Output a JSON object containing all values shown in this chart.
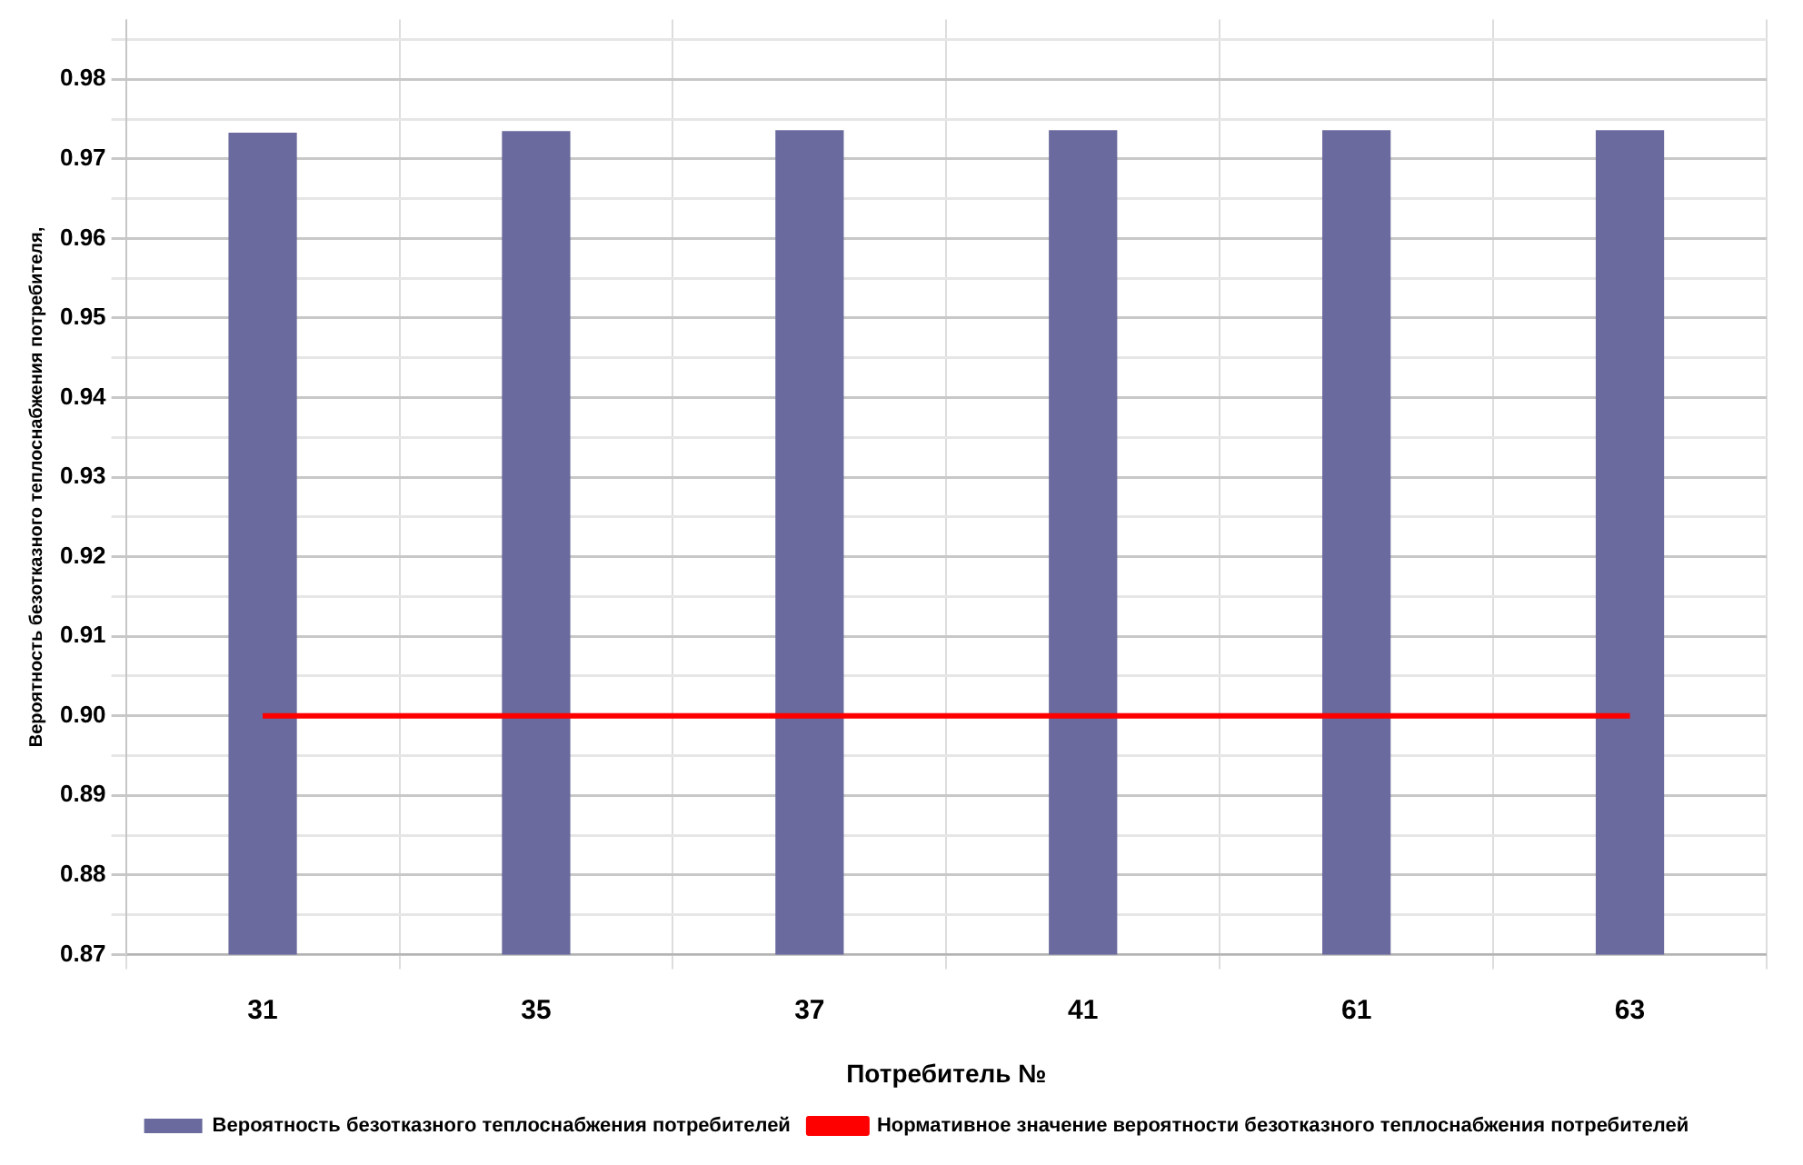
{
  "chart_data": {
    "type": "bar",
    "xlabel": "Потребитель №",
    "ylabel": "Вероятность безотказного теплоснабжения потребителя,",
    "categories": [
      "31",
      "35",
      "37",
      "41",
      "61",
      "63"
    ],
    "series": [
      {
        "name": "Вероятность безотказного теплоснабжения потребителей",
        "color": "#6a6a9e",
        "values": [
          0.9733,
          0.9735,
          0.9736,
          0.9736,
          0.9736,
          0.9736
        ]
      },
      {
        "name": "Нормативное значение вероятности безотказного теплоснабжения потребителей",
        "type": "line",
        "color": "#ff0000",
        "values": [
          0.9,
          0.9,
          0.9,
          0.9,
          0.9,
          0.9
        ]
      }
    ],
    "ylim": [
      0.87,
      0.9875
    ],
    "yticks": [
      {
        "value": 0.87,
        "label": "0.87"
      },
      {
        "value": 0.875,
        "label": null
      },
      {
        "value": 0.88,
        "label": "0.88"
      },
      {
        "value": 0.885,
        "label": null
      },
      {
        "value": 0.89,
        "label": "0.89"
      },
      {
        "value": 0.895,
        "label": null
      },
      {
        "value": 0.9,
        "label": "0.90"
      },
      {
        "value": 0.905,
        "label": null
      },
      {
        "value": 0.91,
        "label": "0.91"
      },
      {
        "value": 0.915,
        "label": null
      },
      {
        "value": 0.92,
        "label": "0.92"
      },
      {
        "value": 0.925,
        "label": null
      },
      {
        "value": 0.93,
        "label": "0.93"
      },
      {
        "value": 0.935,
        "label": null
      },
      {
        "value": 0.94,
        "label": "0.94"
      },
      {
        "value": 0.945,
        "label": null
      },
      {
        "value": 0.95,
        "label": "0.95"
      },
      {
        "value": 0.955,
        "label": null
      },
      {
        "value": 0.96,
        "label": "0.96"
      },
      {
        "value": 0.965,
        "label": null
      },
      {
        "value": 0.97,
        "label": "0.97"
      },
      {
        "value": 0.975,
        "label": null
      },
      {
        "value": 0.98,
        "label": "0.98"
      },
      {
        "value": 0.985,
        "label": null
      }
    ],
    "grid": true,
    "legend": "bottom",
    "marker": "none"
  }
}
